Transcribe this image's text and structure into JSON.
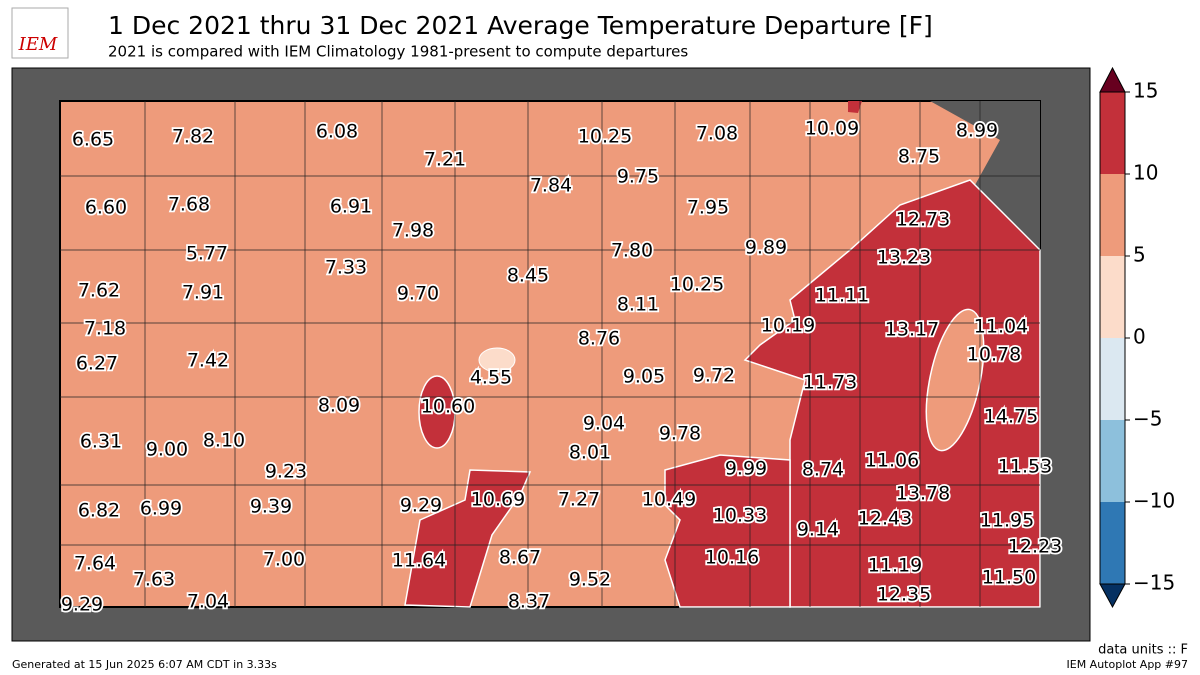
{
  "header": {
    "logo": "IEM",
    "title": "1 Dec 2021 thru 31 Dec 2021 Average Temperature Departure [F]",
    "subtitle": "2021 is compared with IEM Climatology 1981-present to compute departures"
  },
  "colorbar": {
    "ticks": [
      15,
      10,
      5,
      0,
      {
        "value": -5,
        "label": "−5"
      },
      {
        "value": -10,
        "label": "−10"
      },
      {
        "value": -15,
        "label": "−15"
      }
    ],
    "colors": [
      "#67001f",
      "#c3303a",
      "#ee9b7b",
      "#fcdcca",
      "#dbe8f1",
      "#8dc0dc",
      "#2f78b4",
      "#053061"
    ]
  },
  "stations": [
    "6.65",
    "7.82",
    "6.08",
    "7.21",
    "10.25",
    "7.08",
    "10.09",
    "8.99",
    "8.75",
    "6.60",
    "7.68",
    "6.91",
    "7.98",
    "7.84",
    "9.75",
    "7.95",
    "12.73",
    "5.77",
    "9.89",
    "7.80",
    "13.23",
    "7.62",
    "7.91",
    "7.33",
    "9.70",
    "8.45",
    "10.25",
    "11.11",
    "8.11",
    "7.18",
    "10.19",
    "13.17",
    "11.04",
    "8.76",
    "6.27",
    "7.42",
    "10.78",
    "4.55",
    "9.05",
    "9.72",
    "11.73",
    "8.09",
    "10.60",
    "14.75",
    "9.04",
    "6.31",
    "9.00",
    "8.10",
    "9.78",
    "8.01",
    "11.06",
    "11.53",
    "9.23",
    "9.99",
    "8.74",
    "10.69",
    "7.27",
    "10.49",
    "13.78",
    "6.82",
    "6.99",
    "9.39",
    "9.29",
    "10.33",
    "12.43",
    "11.95",
    "9.14",
    "12.23",
    "11.64",
    "8.67",
    "10.16",
    "7.64",
    "7.00",
    "7.63",
    "9.52",
    "11.19",
    "11.50",
    "12.35",
    "9.29",
    "7.04",
    "8.37"
  ],
  "footer": {
    "units": "data units :: F",
    "generated": "Generated at 15 Jun 2025 6:07 AM CDT in 3.33s",
    "app": "IEM Autoplot App #97"
  }
}
